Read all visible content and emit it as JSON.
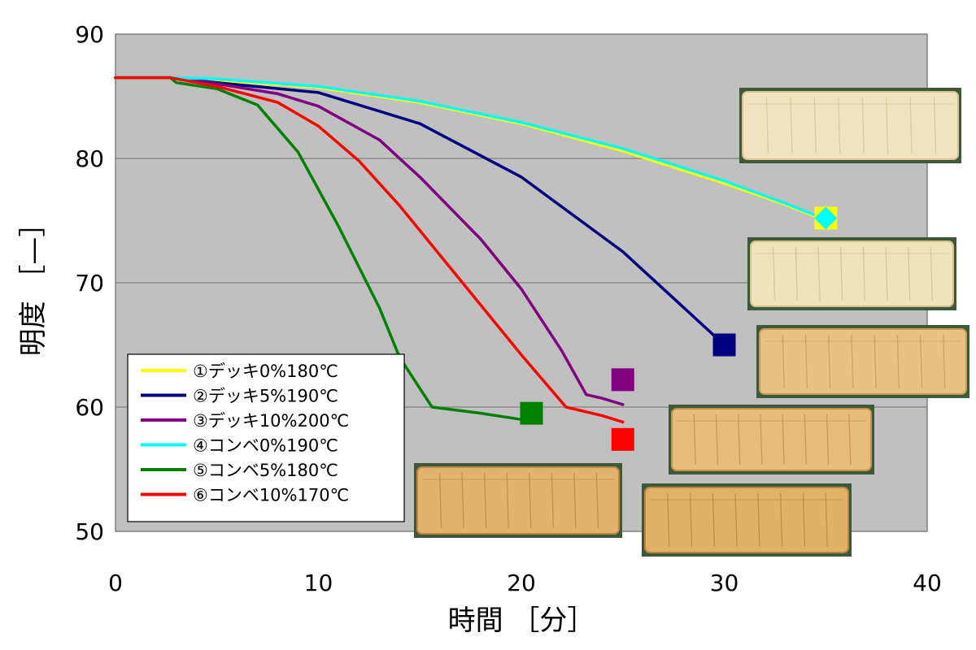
{
  "chart_data": {
    "type": "line",
    "title": "",
    "xlabel": "時間 ［分］",
    "ylabel": "明度 ［—］",
    "xlim": [
      0,
      40
    ],
    "ylim": [
      50,
      90
    ],
    "xticks": [
      "0",
      "10",
      "20",
      "30",
      "40"
    ],
    "yticks": [
      "50",
      "60",
      "70",
      "80",
      "90"
    ],
    "grid": "horizontal",
    "plot_background": "#c0c0c0",
    "legend_position": "lower-left",
    "series": [
      {
        "name": "①デッキ0%180℃",
        "color": "#ffff00",
        "x": [
          0,
          2.7,
          5,
          10,
          15,
          20,
          25,
          30,
          33,
          35
        ],
        "y": [
          86.5,
          86.5,
          86.3,
          85.7,
          84.5,
          82.8,
          80.6,
          78.0,
          76.3,
          75.0
        ],
        "end_marker": {
          "shape": "square",
          "x": 35,
          "y": 75.2
        }
      },
      {
        "name": "②デッキ5%190℃",
        "color": "#000080",
        "x": [
          0,
          2.7,
          5,
          10,
          15,
          20,
          25,
          28,
          30
        ],
        "y": [
          86.5,
          86.5,
          86.1,
          85.3,
          82.8,
          78.5,
          72.5,
          68.0,
          65.0
        ],
        "end_marker": {
          "shape": "square",
          "x": 30,
          "y": 65.0
        }
      },
      {
        "name": "③デッキ10%200℃",
        "color": "#800080",
        "x": [
          0,
          2.7,
          5,
          8,
          10,
          13,
          15,
          18,
          20,
          22,
          23.2,
          24,
          25
        ],
        "y": [
          86.5,
          86.5,
          86.0,
          85.2,
          84.2,
          81.5,
          78.5,
          73.5,
          69.5,
          64.5,
          61.0,
          60.7,
          60.2
        ],
        "end_marker": {
          "shape": "square",
          "x": 25,
          "y": 62.2
        }
      },
      {
        "name": "④コンベ0%190℃",
        "color": "#00ffff",
        "x": [
          0,
          2.7,
          5,
          10,
          15,
          20,
          25,
          30,
          33,
          35
        ],
        "y": [
          86.5,
          86.5,
          86.4,
          85.8,
          84.6,
          82.9,
          80.8,
          78.2,
          76.4,
          75.1
        ],
        "end_marker": {
          "shape": "diamond",
          "x": 35,
          "y": 75.2
        }
      },
      {
        "name": "⑤コンベ5%180℃",
        "color": "#008000",
        "x": [
          0,
          2.7,
          3,
          5,
          7,
          9,
          11,
          13,
          14,
          15.6,
          18,
          20
        ],
        "y": [
          86.5,
          86.5,
          86.1,
          85.6,
          84.3,
          80.5,
          74.5,
          68.0,
          64.0,
          60.0,
          59.5,
          59.0
        ],
        "end_marker": {
          "shape": "square",
          "x": 20.5,
          "y": 59.5
        }
      },
      {
        "name": "⑥コンベ10%170℃",
        "color": "#ff0000",
        "x": [
          0,
          2.7,
          5,
          8,
          10,
          12,
          14,
          16,
          18,
          20,
          22.2,
          24,
          25
        ],
        "y": [
          86.5,
          86.5,
          85.8,
          84.5,
          82.6,
          79.8,
          76.2,
          72.2,
          68.2,
          64.2,
          60.0,
          59.3,
          58.8
        ],
        "end_marker": {
          "shape": "square",
          "x": 25,
          "y": 57.4
        }
      }
    ],
    "photos": [
      {
        "name": "bread-photo-1",
        "color": "#f1e3c0",
        "stripe": "#d8c291"
      },
      {
        "name": "bread-photo-2",
        "color": "#f0e2bd",
        "stripe": "#d6c08d"
      },
      {
        "name": "bread-photo-3",
        "color": "#e8c285",
        "stripe": "#c99a55"
      },
      {
        "name": "bread-photo-4",
        "color": "#e6bd7c",
        "stripe": "#c4924a"
      },
      {
        "name": "bread-photo-5",
        "color": "#e2b26e",
        "stripe": "#bd8841"
      },
      {
        "name": "bread-photo-6",
        "color": "#e1b06b",
        "stripe": "#bb853e"
      }
    ]
  }
}
